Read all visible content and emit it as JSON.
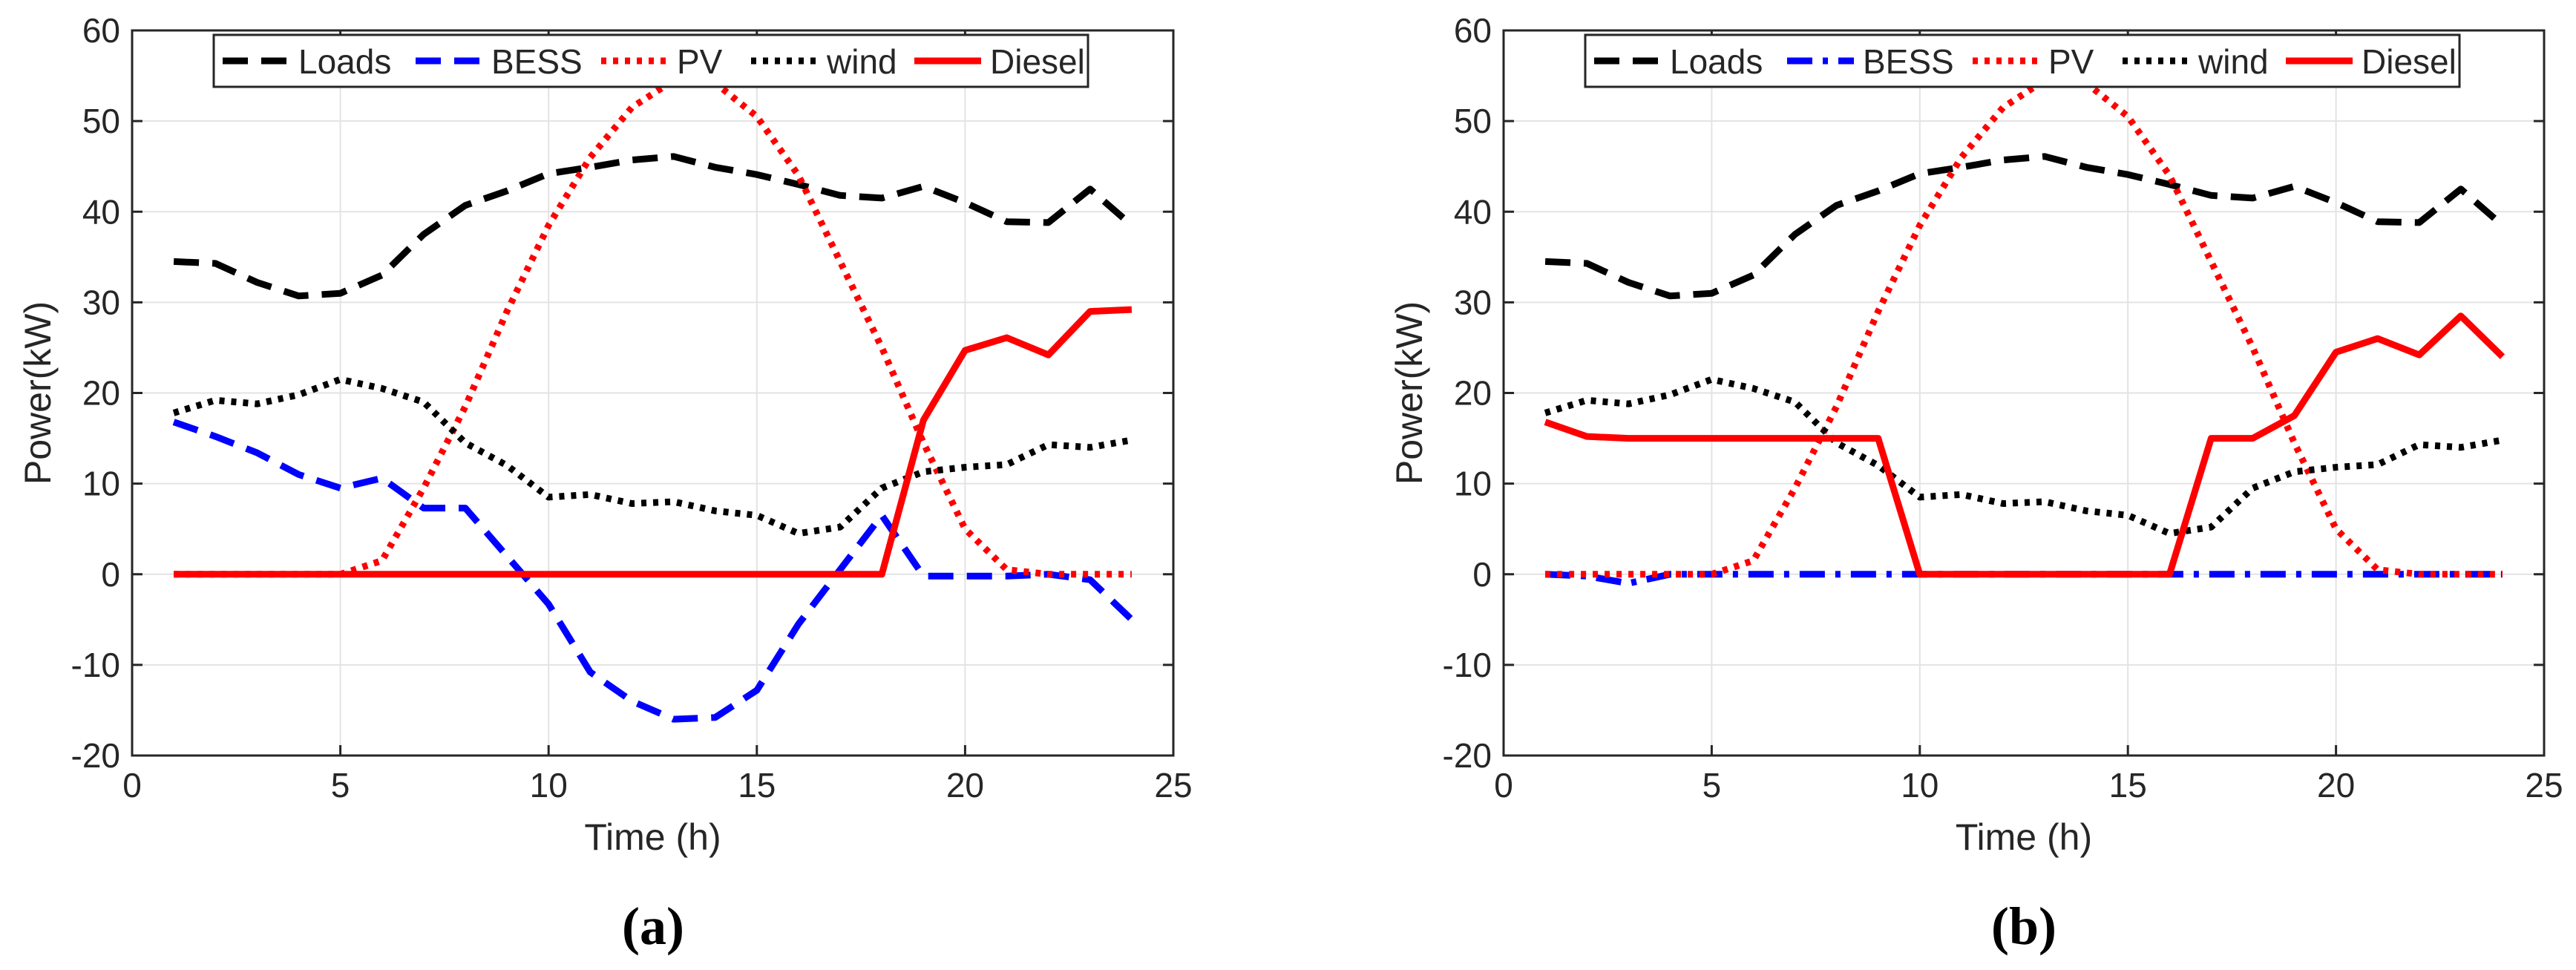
{
  "chart_data": [
    {
      "type": "line",
      "caption": "(a)",
      "xlabel": "Time (h)",
      "ylabel": "Power(kW)",
      "xlim": [
        0,
        25
      ],
      "ylim": [
        -20,
        60
      ],
      "xticks": [
        0,
        5,
        10,
        15,
        20,
        25
      ],
      "yticks": [
        -20,
        -10,
        0,
        10,
        20,
        30,
        40,
        50,
        60
      ],
      "xtick_labels": [
        "0",
        "5",
        "10",
        "15",
        "20",
        "25"
      ],
      "ytick_labels": [
        "-20",
        "-10",
        "0",
        "10",
        "20",
        "30",
        "40",
        "50",
        "60"
      ],
      "grid": true,
      "legend": {
        "position": "top-center",
        "orientation": "horizontal"
      },
      "x": [
        1,
        2,
        3,
        4,
        5,
        6,
        7,
        8,
        9,
        10,
        11,
        12,
        13,
        14,
        15,
        16,
        17,
        18,
        19,
        20,
        21,
        22,
        23,
        24
      ],
      "series": [
        {
          "name": "Loads",
          "color": "#000000",
          "style": "dashed",
          "values": [
            34.5,
            34.3,
            32.2,
            30.7,
            31.0,
            33.0,
            37.5,
            40.7,
            42.3,
            44.2,
            44.9,
            45.7,
            46.1,
            44.9,
            44.1,
            43.0,
            41.8,
            41.5,
            42.8,
            41.0,
            38.9,
            38.8,
            42.5,
            38.5
          ]
        },
        {
          "name": "BESS",
          "color": "#0000ff",
          "style": "dashed",
          "values": [
            16.8,
            15.2,
            13.4,
            11.0,
            9.5,
            10.6,
            7.3,
            7.3,
            2.0,
            -3.3,
            -10.8,
            -14.0,
            -16.0,
            -15.8,
            -12.8,
            -5.5,
            0.5,
            6.5,
            -0.2,
            -0.2,
            -0.2,
            0.0,
            -0.6,
            -5.0
          ]
        },
        {
          "name": "PV",
          "color": "#ff0000",
          "style": "dotted",
          "values": [
            0,
            0,
            0,
            0,
            0,
            1.5,
            9.5,
            18.5,
            29.0,
            38.5,
            46.0,
            51.5,
            54.5,
            54.2,
            50.5,
            44.0,
            34.5,
            25.0,
            14.5,
            5.0,
            0.5,
            0,
            0,
            0
          ]
        },
        {
          "name": "wind",
          "color": "#000000",
          "style": "dotted",
          "values": [
            17.8,
            19.2,
            18.8,
            19.8,
            21.5,
            20.5,
            19.0,
            14.5,
            12.0,
            8.5,
            8.8,
            7.8,
            8.0,
            7.0,
            6.5,
            4.5,
            5.2,
            9.5,
            11.3,
            11.8,
            12.1,
            14.3,
            14.0,
            14.8
          ]
        },
        {
          "name": "Diesel",
          "color": "#ff0000",
          "style": "solid",
          "values": [
            0,
            0,
            0,
            0,
            0,
            0,
            0,
            0,
            0,
            0,
            0,
            0,
            0,
            0,
            0,
            0,
            0,
            0,
            17.0,
            24.7,
            26.1,
            24.2,
            29.0,
            29.2
          ]
        }
      ]
    },
    {
      "type": "line",
      "caption": "(b)",
      "xlabel": "Time (h)",
      "ylabel": "Power(kW)",
      "xlim": [
        0,
        25
      ],
      "ylim": [
        -20,
        60
      ],
      "xticks": [
        0,
        5,
        10,
        15,
        20,
        25
      ],
      "yticks": [
        -20,
        -10,
        0,
        10,
        20,
        30,
        40,
        50,
        60
      ],
      "xtick_labels": [
        "0",
        "5",
        "10",
        "15",
        "20",
        "25"
      ],
      "ytick_labels": [
        "-20",
        "-10",
        "0",
        "10",
        "20",
        "30",
        "40",
        "50",
        "60"
      ],
      "grid": true,
      "legend": {
        "position": "top-center",
        "orientation": "horizontal"
      },
      "x": [
        1,
        2,
        3,
        4,
        5,
        6,
        7,
        8,
        9,
        10,
        11,
        12,
        13,
        14,
        15,
        16,
        17,
        18,
        19,
        20,
        21,
        22,
        23,
        24
      ],
      "series": [
        {
          "name": "Loads",
          "color": "#000000",
          "style": "dashed",
          "values": [
            34.5,
            34.3,
            32.2,
            30.7,
            31.0,
            33.0,
            37.5,
            40.7,
            42.3,
            44.2,
            44.9,
            45.7,
            46.1,
            44.9,
            44.1,
            43.0,
            41.8,
            41.5,
            42.8,
            41.0,
            38.9,
            38.8,
            42.5,
            38.5
          ]
        },
        {
          "name": "BESS",
          "color": "#0000ff",
          "style": "dashdot",
          "values": [
            0,
            -0.2,
            -1.0,
            0,
            0,
            0,
            0,
            0,
            0,
            0,
            0,
            0,
            0,
            0,
            0,
            0,
            0,
            0,
            0,
            0,
            0,
            0,
            0,
            0
          ]
        },
        {
          "name": "PV",
          "color": "#ff0000",
          "style": "dotted",
          "values": [
            0,
            0,
            0,
            0,
            0,
            1.5,
            9.5,
            18.5,
            29.0,
            38.5,
            46.0,
            51.5,
            54.5,
            54.2,
            50.5,
            44.0,
            34.5,
            25.0,
            14.5,
            5.0,
            0.5,
            0,
            0,
            0
          ]
        },
        {
          "name": "wind",
          "color": "#000000",
          "style": "dotted",
          "values": [
            17.8,
            19.2,
            18.8,
            19.8,
            21.5,
            20.5,
            19.0,
            14.5,
            12.0,
            8.5,
            8.8,
            7.8,
            8.0,
            7.0,
            6.5,
            4.5,
            5.2,
            9.5,
            11.3,
            11.8,
            12.1,
            14.3,
            14.0,
            14.8
          ]
        },
        {
          "name": "Diesel",
          "color": "#ff0000",
          "style": "solid",
          "values": [
            16.8,
            15.2,
            15.0,
            15.0,
            15.0,
            15.0,
            15.0,
            15.0,
            15.0,
            0,
            0,
            0,
            0,
            0,
            0,
            0,
            15.0,
            15.0,
            17.5,
            24.5,
            26.0,
            24.2,
            28.5,
            24.0
          ]
        }
      ]
    }
  ]
}
